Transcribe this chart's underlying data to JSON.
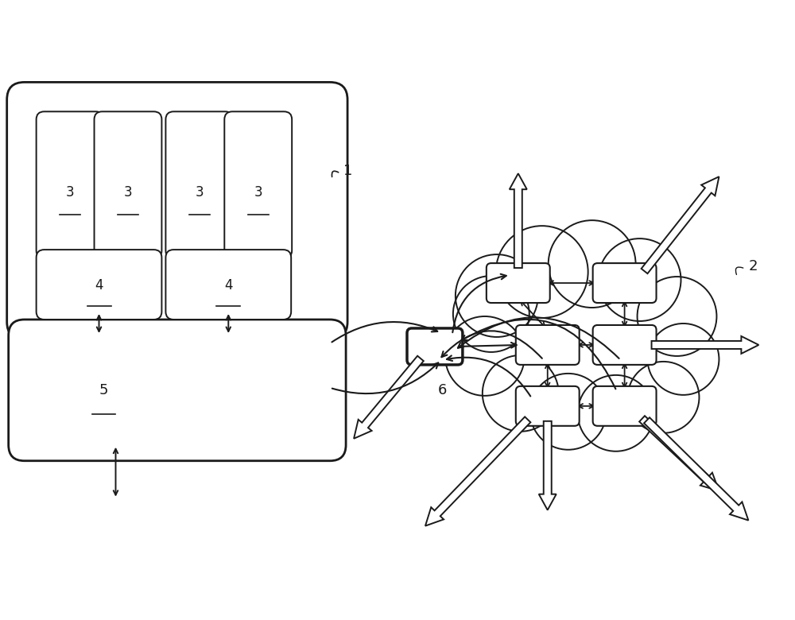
{
  "bg_color": "#ffffff",
  "line_color": "#1a1a1a",
  "label_1": "1",
  "label_2": "2",
  "label_3": "3",
  "label_4": "4",
  "label_5": "5",
  "label_6": "6",
  "fig_w": 10.0,
  "fig_h": 7.8,
  "dpi": 100
}
